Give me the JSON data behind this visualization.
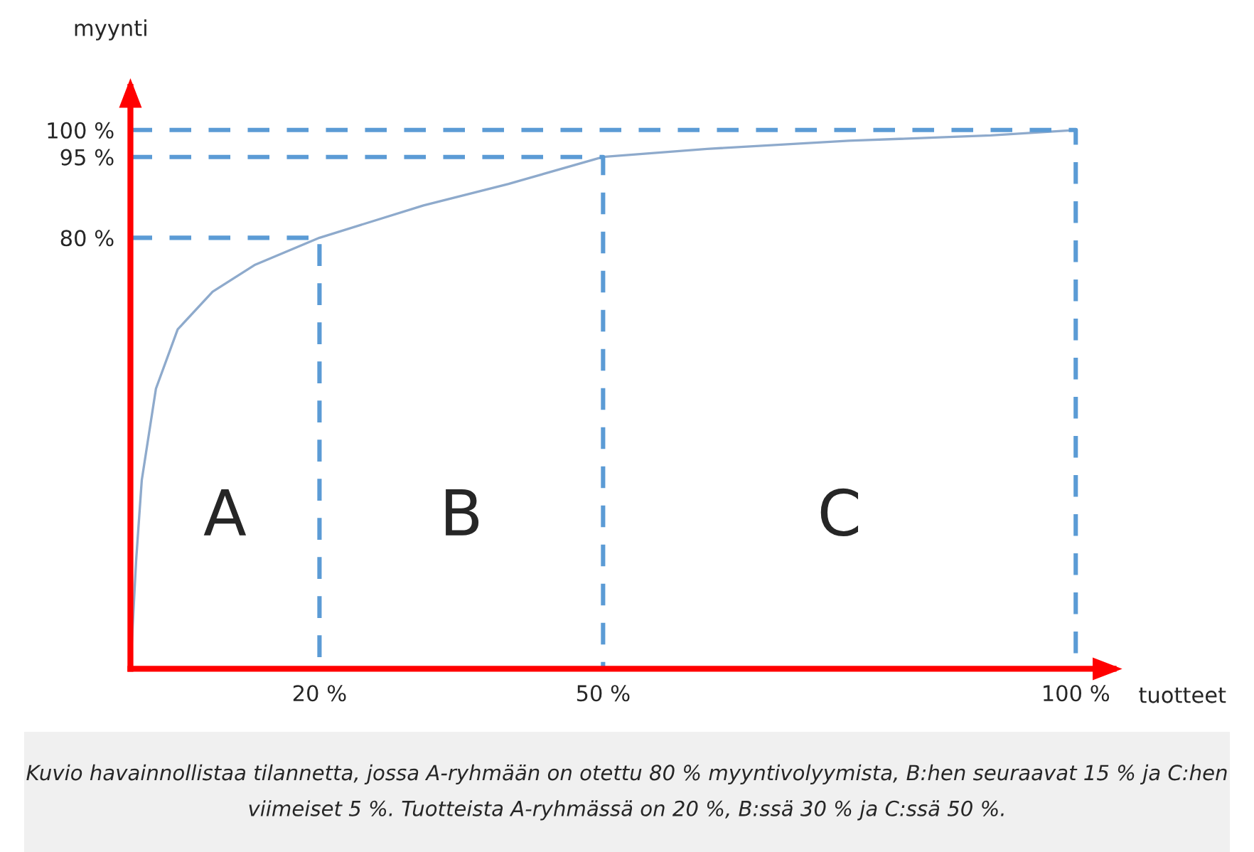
{
  "chart_data": {
    "type": "line",
    "xlabel": "tuotteet",
    "ylabel": "myynti",
    "xlim": [
      0,
      104
    ],
    "ylim": [
      0,
      108
    ],
    "xticks": [
      {
        "value": 20,
        "label": "20 %"
      },
      {
        "value": 50,
        "label": "50 %"
      },
      {
        "value": 100,
        "label": "100 %"
      }
    ],
    "yticks": [
      {
        "value": 80,
        "label": "80 %"
      },
      {
        "value": 95,
        "label": "95 %"
      },
      {
        "value": 100,
        "label": "100 %"
      }
    ],
    "grid": false,
    "legend": false,
    "marker": "none",
    "series": [
      {
        "color": "#8eaacc",
        "line_style": "solid",
        "x": [
          0,
          0.6,
          1.2,
          2.7,
          5,
          8.7,
          13.2,
          20,
          31,
          40,
          50,
          61,
          76,
          91,
          100
        ],
        "values": [
          0,
          20,
          35,
          52,
          63,
          70,
          75,
          80,
          86,
          90,
          95,
          96.5,
          98,
          99,
          100
        ]
      },
      {
        "color": "#5b9bd5",
        "line_style": "dashed",
        "x": [
          0,
          20,
          20
        ],
        "values": [
          80,
          80,
          0
        ]
      },
      {
        "color": "#5b9bd5",
        "line_style": "dashed",
        "x": [
          0,
          50,
          50
        ],
        "values": [
          95,
          95,
          0
        ]
      },
      {
        "color": "#5b9bd5",
        "line_style": "dashed",
        "x": [
          0,
          100,
          100
        ],
        "values": [
          100,
          100,
          0
        ]
      }
    ],
    "annotations": [
      "A",
      "B",
      "C",
      "Kuvio havainnollistaa tilannetta, jossa A-ryhmään on otettu 80 % myyntivolyymista, B:hen seuraavat 15 % ja C:hen viimeiset 5 %. Tuotteista A-ryhmässä on 20 %, B:ssä 30 % ja C:ssä 50 %."
    ]
  }
}
